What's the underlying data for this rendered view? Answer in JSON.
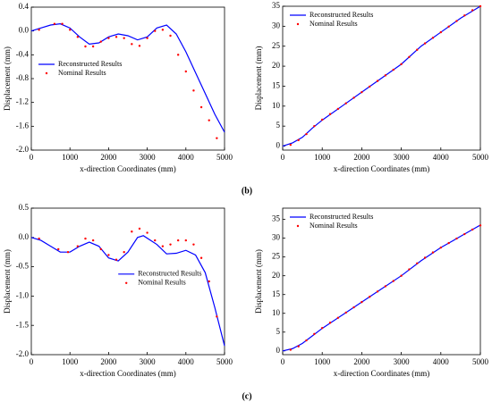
{
  "captions": [
    "(b)",
    "(c)"
  ],
  "chart_data": [
    {
      "type": "line",
      "xlabel": "x-direction Coordinates (mm)",
      "ylabel": "Displacement (mm)",
      "xlim": [
        0,
        5000
      ],
      "xticks": [
        0,
        1000,
        2000,
        3000,
        4000,
        5000
      ],
      "ylim": [
        -2.0,
        0.4
      ],
      "yticks": [
        0.4,
        {
          "value": 0,
          "label": "0.0"
        },
        -0.4,
        -0.8,
        -1.2,
        -1.6,
        {
          "value": -2.0,
          "label": "-2.0"
        }
      ],
      "legend": "center left",
      "series": [
        {
          "name": "Reconstructed Results",
          "color": "#0000ff",
          "marker": "line",
          "x": [
            0,
            250,
            500,
            750,
            1000,
            1250,
            1500,
            1750,
            2000,
            2250,
            2500,
            2750,
            3000,
            3250,
            3500,
            3750,
            4000,
            4250,
            4500,
            4750,
            5000
          ],
          "values": [
            0.0,
            0.05,
            0.1,
            0.12,
            0.05,
            -0.1,
            -0.22,
            -0.2,
            -0.1,
            -0.05,
            -0.08,
            -0.15,
            -0.1,
            0.05,
            0.1,
            -0.05,
            -0.35,
            -0.7,
            -1.05,
            -1.4,
            -1.7
          ]
        },
        {
          "name": "Nominal Results",
          "color": "#ff0000",
          "marker": "dot",
          "x": [
            200,
            600,
            800,
            1000,
            1200,
            1400,
            1600,
            1800,
            2000,
            2200,
            2400,
            2600,
            2800,
            3000,
            3200,
            3400,
            3600,
            3800,
            4000,
            4200,
            4400,
            4600,
            4800
          ],
          "values": [
            0.02,
            0.12,
            0.12,
            0.02,
            -0.1,
            -0.26,
            -0.26,
            -0.18,
            -0.12,
            -0.1,
            -0.12,
            -0.22,
            -0.25,
            -0.12,
            0.0,
            0.02,
            -0.08,
            -0.4,
            -0.68,
            -1.0,
            -1.28,
            -1.5,
            -1.8
          ]
        }
      ]
    },
    {
      "type": "line",
      "xlabel": "x-direction Coordinates (mm)",
      "ylabel": "Displacement (mm)",
      "xlim": [
        0,
        5000
      ],
      "xticks": [
        0,
        1000,
        2000,
        3000,
        4000,
        5000
      ],
      "ylim": [
        -1,
        35
      ],
      "yticks": [
        0,
        5,
        10,
        15,
        20,
        25,
        30,
        35
      ],
      "legend": "upper left",
      "series": [
        {
          "name": "Reconstructed Results",
          "color": "#0000ff",
          "marker": "line",
          "x": [
            0,
            250,
            500,
            750,
            1000,
            1500,
            2000,
            2500,
            3000,
            3500,
            4000,
            4500,
            5000
          ],
          "values": [
            0,
            0.8,
            2.2,
            4.5,
            6.5,
            10,
            13.5,
            17,
            20.5,
            25,
            28.5,
            32,
            35
          ]
        },
        {
          "name": "Nominal Results",
          "color": "#ff0000",
          "marker": "dot",
          "x": [
            200,
            400,
            600,
            800,
            1000,
            1200,
            1400,
            1600,
            1800,
            2000,
            2200,
            2400,
            2600,
            2800,
            3000,
            3200,
            3400,
            3600,
            3800,
            4000,
            4200,
            4400,
            4600,
            4800,
            5000
          ],
          "values": [
            0.3,
            1.5,
            3.0,
            5.0,
            6.6,
            8.0,
            9.3,
            10.7,
            12.1,
            13.5,
            14.9,
            16.3,
            17.7,
            19.1,
            20.5,
            22.3,
            24.1,
            25.7,
            27.1,
            28.5,
            29.9,
            31.3,
            32.7,
            34.0,
            35.0
          ]
        }
      ]
    },
    {
      "type": "line",
      "xlabel": "x-direction Coordinates (mm)",
      "ylabel": "Displacement (mm)",
      "xlim": [
        0,
        5000
      ],
      "xticks": [
        0,
        1000,
        2000,
        3000,
        4000,
        5000
      ],
      "ylim": [
        -2.0,
        0.5
      ],
      "yticks": [
        0.5,
        {
          "value": 0,
          "label": "0.0"
        },
        -0.5,
        {
          "value": -1.0,
          "label": "-1.0"
        },
        -1.5,
        {
          "value": -2.0,
          "label": "-2.0"
        }
      ],
      "legend": "center right",
      "series": [
        {
          "name": "Reconstructed Results",
          "color": "#0000ff",
          "marker": "line",
          "x": [
            0,
            250,
            500,
            750,
            1000,
            1250,
            1500,
            1750,
            2000,
            2250,
            2500,
            2750,
            2900,
            3250,
            3500,
            3750,
            4000,
            4250,
            4500,
            4750,
            5000
          ],
          "values": [
            0,
            -0.05,
            -0.15,
            -0.25,
            -0.25,
            -0.15,
            -0.08,
            -0.15,
            -0.35,
            -0.4,
            -0.25,
            0.0,
            0.03,
            -0.12,
            -0.28,
            -0.27,
            -0.22,
            -0.3,
            -0.6,
            -1.2,
            -1.85
          ]
        },
        {
          "name": "Nominal Results",
          "color": "#ff0000",
          "marker": "dot",
          "x": [
            200,
            700,
            950,
            1200,
            1400,
            1600,
            1800,
            2000,
            2200,
            2400,
            2600,
            2800,
            3000,
            3200,
            3400,
            3600,
            3800,
            4000,
            4200,
            4400,
            4600,
            4800
          ],
          "values": [
            -0.02,
            -0.2,
            -0.25,
            -0.15,
            -0.02,
            -0.05,
            -0.2,
            -0.3,
            -0.38,
            -0.25,
            0.1,
            0.15,
            0.08,
            -0.05,
            -0.15,
            -0.12,
            -0.05,
            -0.05,
            -0.12,
            -0.35,
            -0.75,
            -1.35
          ]
        }
      ]
    },
    {
      "type": "line",
      "xlabel": "x-direction Coordinates (mm)",
      "ylabel": "Displacement (mm)",
      "xlim": [
        0,
        5000
      ],
      "xticks": [
        0,
        1000,
        2000,
        3000,
        4000,
        5000
      ],
      "ylim": [
        -1,
        38
      ],
      "yticks": [
        0,
        5,
        10,
        15,
        20,
        25,
        30,
        35
      ],
      "legend": "upper left",
      "series": [
        {
          "name": "Reconstructed Results",
          "color": "#0000ff",
          "marker": "line",
          "x": [
            0,
            250,
            500,
            750,
            1000,
            1500,
            2000,
            2500,
            3000,
            3500,
            4000,
            4500,
            5000
          ],
          "values": [
            0,
            0.6,
            2.0,
            4.0,
            6.0,
            9.5,
            13,
            16.5,
            20,
            24,
            27.5,
            30.5,
            33.5
          ]
        },
        {
          "name": "Nominal Results",
          "color": "#ff0000",
          "marker": "dot",
          "x": [
            200,
            400,
            600,
            800,
            1000,
            1200,
            1400,
            1600,
            1800,
            2000,
            2200,
            2400,
            2600,
            2800,
            3000,
            3200,
            3400,
            3600,
            3800,
            4000,
            4200,
            4400,
            4600,
            4800,
            5000
          ],
          "values": [
            0.3,
            1.2,
            2.8,
            4.5,
            6.1,
            7.5,
            8.8,
            10.2,
            11.6,
            13.0,
            14.4,
            15.8,
            17.2,
            18.6,
            20.0,
            21.7,
            23.3,
            24.8,
            26.2,
            27.5,
            28.7,
            29.9,
            31.1,
            32.3,
            33.4
          ]
        }
      ]
    }
  ]
}
